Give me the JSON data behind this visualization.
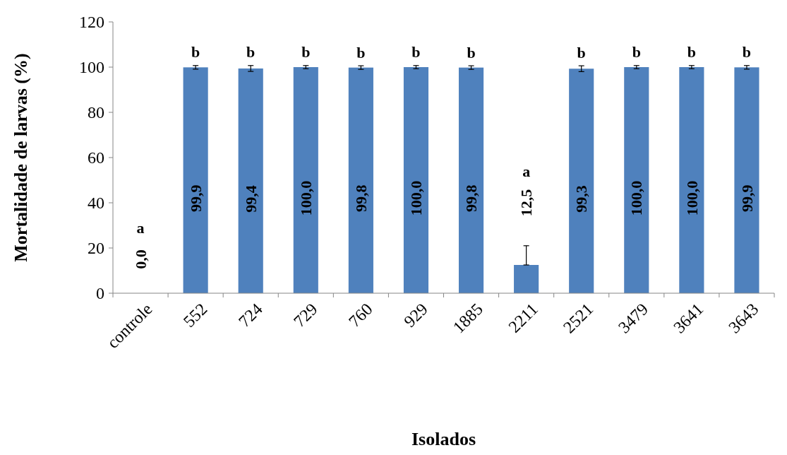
{
  "chart_data": {
    "type": "bar",
    "xlabel": "Isolados",
    "ylabel": "Mortalidade de larvas (%)",
    "categories": [
      "controle",
      "552",
      "724",
      "729",
      "760",
      "929",
      "1885",
      "2211",
      "2521",
      "3479",
      "3641",
      "3643"
    ],
    "values": [
      0,
      99.9,
      99.4,
      100,
      99.8,
      100,
      99.8,
      12.5,
      99.3,
      100,
      100,
      99.9
    ],
    "errors": [
      null,
      0.8,
      1.3,
      0.7,
      0.8,
      0.7,
      0.8,
      [
        12.5,
        21
      ],
      1.3,
      0.7,
      0.7,
      0.8
    ],
    "value_labels": [
      "0,0",
      "99,9",
      "99,4",
      "100,0",
      "99,8",
      "100,0",
      "99,8",
      "12,5",
      "99,3",
      "100,0",
      "100,0",
      "99,9"
    ],
    "color": "#4f81bd",
    "ylim": [
      0,
      120
    ],
    "yticks": [
      0,
      20,
      40,
      60,
      80,
      100,
      120
    ],
    "grid": false,
    "annotations": [
      "a",
      "b",
      "b",
      "b",
      "b",
      "b",
      "b",
      "a",
      "b",
      "b",
      "b",
      "b"
    ]
  }
}
